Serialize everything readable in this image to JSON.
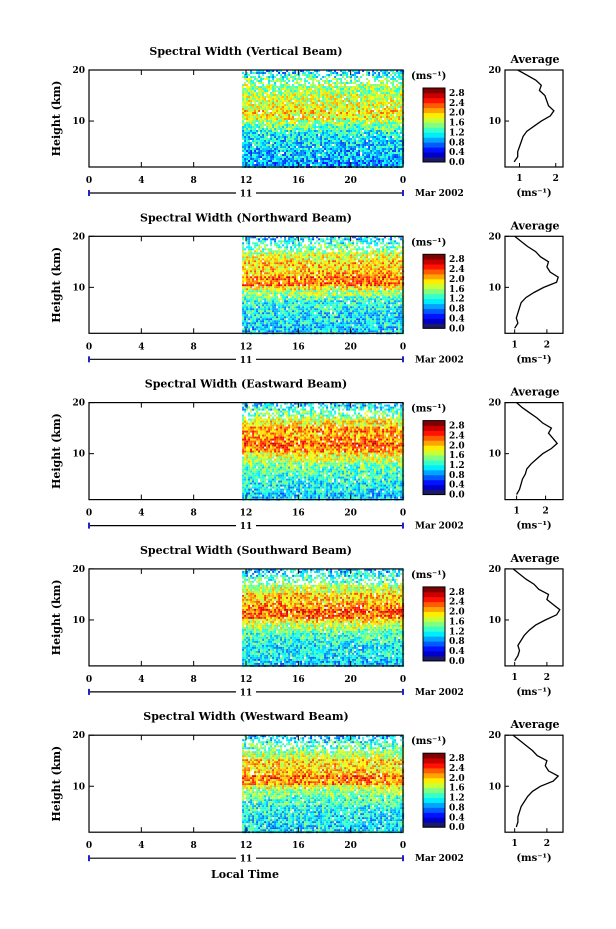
{
  "x_axis_label": "Local Time",
  "chart_data": [
    {
      "type": "heatmap",
      "title": "Spectral Width (Vertical Beam)",
      "ylabel": "Height (km)",
      "x_ticks": [
        "0",
        "4",
        "8",
        "12",
        "16",
        "20",
        "0"
      ],
      "y_ticks": [
        "20",
        "10"
      ],
      "xlim": [
        0,
        24
      ],
      "ylim": [
        1,
        20
      ],
      "data_start_hour": 11.7,
      "day_label": "11",
      "date_label": "Mar 2002",
      "colorbar": {
        "unit": "(ms⁻¹)",
        "ticks": [
          "2.8",
          "2.4",
          "2.0",
          "1.6",
          "1.2",
          "0.8",
          "0.4",
          "0.0"
        ],
        "range": [
          0,
          3.0
        ]
      },
      "profile": {
        "title": "Average",
        "xlabel": "(ms⁻¹)",
        "x_ticks": [
          "1",
          "2"
        ],
        "y_ticks": [
          "20",
          "10"
        ],
        "xlim": [
          0.6,
          2.2
        ],
        "height_km": [
          2,
          3,
          4,
          5,
          6,
          7,
          8,
          9,
          10,
          11,
          12,
          13,
          14,
          15,
          16,
          17,
          18,
          19,
          20
        ],
        "value": [
          0.85,
          0.95,
          0.95,
          1.0,
          1.05,
          1.1,
          1.2,
          1.4,
          1.6,
          1.85,
          1.95,
          1.8,
          1.75,
          1.7,
          1.55,
          1.6,
          1.45,
          1.2,
          0.95
        ]
      }
    },
    {
      "type": "heatmap",
      "title": "Spectral Width (Northward Beam)",
      "ylabel": "Height (km)",
      "x_ticks": [
        "0",
        "4",
        "8",
        "12",
        "16",
        "20",
        "0"
      ],
      "y_ticks": [
        "20",
        "10"
      ],
      "xlim": [
        0,
        24
      ],
      "ylim": [
        1,
        20
      ],
      "data_start_hour": 11.7,
      "day_label": "11",
      "date_label": "Mar 2002",
      "colorbar": {
        "unit": "(ms⁻¹)",
        "ticks": [
          "2.8",
          "2.4",
          "2.0",
          "1.6",
          "1.2",
          "0.8",
          "0.4",
          "0.0"
        ],
        "range": [
          0,
          3.0
        ]
      },
      "profile": {
        "title": "Average",
        "xlabel": "(ms⁻¹)",
        "x_ticks": [
          "1",
          "2"
        ],
        "y_ticks": [
          "20",
          "10"
        ],
        "xlim": [
          0.7,
          2.5
        ],
        "height_km": [
          2,
          3,
          4,
          5,
          6,
          7,
          8,
          9,
          10,
          11,
          12,
          13,
          14,
          15,
          16,
          17,
          18,
          19,
          20
        ],
        "value": [
          1.0,
          1.1,
          1.05,
          1.1,
          1.15,
          1.2,
          1.35,
          1.6,
          1.9,
          2.3,
          2.35,
          2.1,
          2.0,
          2.05,
          1.8,
          1.65,
          1.4,
          1.2,
          1.0
        ]
      }
    },
    {
      "type": "heatmap",
      "title": "Spectral Width (Eastward Beam)",
      "ylabel": "Height (km)",
      "x_ticks": [
        "0",
        "4",
        "8",
        "12",
        "16",
        "20",
        "0"
      ],
      "y_ticks": [
        "20",
        "10"
      ],
      "xlim": [
        0,
        24
      ],
      "ylim": [
        1,
        20
      ],
      "data_start_hour": 11.7,
      "day_label": "11",
      "date_label": "Mar 2002",
      "colorbar": {
        "unit": "(ms⁻¹)",
        "ticks": [
          "2.8",
          "2.4",
          "2.0",
          "1.6",
          "1.2",
          "0.8",
          "0.4",
          "0.0"
        ],
        "range": [
          0,
          3.0
        ]
      },
      "profile": {
        "title": "Average",
        "xlabel": "(ms⁻¹)",
        "x_ticks": [
          "1",
          "2"
        ],
        "y_ticks": [
          "20",
          "10"
        ],
        "xlim": [
          0.6,
          2.6
        ],
        "height_km": [
          2,
          3,
          4,
          5,
          6,
          7,
          8,
          9,
          10,
          11,
          12,
          13,
          14,
          15,
          16,
          17,
          18,
          19,
          20
        ],
        "value": [
          1.0,
          1.1,
          1.15,
          1.2,
          1.3,
          1.35,
          1.5,
          1.7,
          1.9,
          2.2,
          2.4,
          2.25,
          2.1,
          2.2,
          1.9,
          1.7,
          1.45,
          1.2,
          1.0
        ]
      }
    },
    {
      "type": "heatmap",
      "title": "Spectral Width (Southward Beam)",
      "ylabel": "Height (km)",
      "x_ticks": [
        "0",
        "4",
        "8",
        "12",
        "16",
        "20",
        "0"
      ],
      "y_ticks": [
        "20",
        "10"
      ],
      "xlim": [
        0,
        24
      ],
      "ylim": [
        1,
        20
      ],
      "data_start_hour": 11.7,
      "day_label": "11",
      "date_label": "Mar 2002",
      "colorbar": {
        "unit": "(ms⁻¹)",
        "ticks": [
          "2.8",
          "2.4",
          "2.0",
          "1.6",
          "1.2",
          "0.8",
          "0.4",
          "0.0"
        ],
        "range": [
          0,
          3.0
        ]
      },
      "profile": {
        "title": "Average",
        "xlabel": "(ms⁻¹)",
        "x_ticks": [
          "1",
          "2"
        ],
        "y_ticks": [
          "20",
          "10"
        ],
        "xlim": [
          0.7,
          2.5
        ],
        "height_km": [
          2,
          3,
          4,
          5,
          6,
          7,
          8,
          9,
          10,
          11,
          12,
          13,
          14,
          15,
          16,
          17,
          18,
          19,
          20
        ],
        "value": [
          1.0,
          1.1,
          1.15,
          1.1,
          1.2,
          1.3,
          1.45,
          1.65,
          1.95,
          2.3,
          2.4,
          2.2,
          2.0,
          2.05,
          1.75,
          1.6,
          1.35,
          1.15,
          0.95
        ]
      }
    },
    {
      "type": "heatmap",
      "title": "Spectral Width (Westward Beam)",
      "ylabel": "Height (km)",
      "x_ticks": [
        "0",
        "4",
        "8",
        "12",
        "16",
        "20",
        "0"
      ],
      "y_ticks": [
        "20",
        "10"
      ],
      "xlim": [
        0,
        24
      ],
      "ylim": [
        1,
        20
      ],
      "data_start_hour": 11.7,
      "day_label": "11",
      "date_label": "Mar 2002",
      "colorbar": {
        "unit": "(ms⁻¹)",
        "ticks": [
          "2.8",
          "2.4",
          "2.0",
          "1.6",
          "1.2",
          "0.8",
          "0.4",
          "0.0"
        ],
        "range": [
          0,
          3.0
        ]
      },
      "profile": {
        "title": "Average",
        "xlabel": "(ms⁻¹)",
        "x_ticks": [
          "1",
          "2"
        ],
        "y_ticks": [
          "20",
          "10"
        ],
        "xlim": [
          0.7,
          2.5
        ],
        "height_km": [
          2,
          3,
          4,
          5,
          6,
          7,
          8,
          9,
          10,
          11,
          12,
          13,
          14,
          15,
          16,
          17,
          18,
          19,
          20
        ],
        "value": [
          1.05,
          1.1,
          1.1,
          1.15,
          1.2,
          1.3,
          1.4,
          1.55,
          1.8,
          2.2,
          2.35,
          2.05,
          1.95,
          2.0,
          1.7,
          1.55,
          1.35,
          1.15,
          0.95
        ]
      }
    }
  ]
}
